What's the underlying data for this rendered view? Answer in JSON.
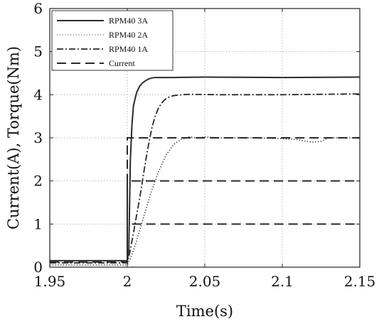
{
  "chart_data": {
    "type": "line",
    "title": "",
    "xlabel": "Time(s)",
    "ylabel": "Current(A), Torque(Nm)",
    "xlim": [
      1.95,
      2.15
    ],
    "ylim": [
      0,
      6
    ],
    "xticks": [
      1.95,
      2.0,
      2.05,
      2.1,
      2.15
    ],
    "xtick_labels": [
      "1.95",
      "2",
      "2.05",
      "2.1",
      "2.15"
    ],
    "yticks": [
      0,
      1,
      2,
      3,
      4,
      5,
      6
    ],
    "ytick_labels": [
      "0",
      "1",
      "2",
      "3",
      "4",
      "5",
      "6"
    ],
    "grid": true,
    "legend_position": "top-left",
    "series": [
      {
        "name": "RPM40 3A",
        "style": "solid",
        "color": "#2a2a2a",
        "x": [
          1.95,
          1.99,
          2.0,
          2.001,
          2.0015,
          2.002,
          2.003,
          2.004,
          2.006,
          2.008,
          2.01,
          2.012,
          2.014,
          2.016,
          2.018,
          2.02,
          2.03,
          2.05,
          2.1,
          2.15
        ],
        "y": [
          0.15,
          0.15,
          0.15,
          0.4,
          1.5,
          2.5,
          3.3,
          3.75,
          4.05,
          4.2,
          4.28,
          4.33,
          4.37,
          4.39,
          4.4,
          4.4,
          4.4,
          4.41,
          4.4,
          4.41
        ]
      },
      {
        "name": "RPM40 2A",
        "style": "dotted",
        "color": "#8a8a8a",
        "x": [
          1.95,
          1.99,
          2.0,
          2.002,
          2.005,
          2.01,
          2.015,
          2.02,
          2.025,
          2.03,
          2.035,
          2.04,
          2.045,
          2.05,
          2.06,
          2.08,
          2.1,
          2.11,
          2.115,
          2.12,
          2.125,
          2.13,
          2.15
        ],
        "y": [
          0.05,
          0.05,
          0.05,
          0.2,
          0.5,
          1.1,
          1.7,
          2.2,
          2.6,
          2.85,
          2.97,
          3.02,
          3.0,
          3.02,
          3.0,
          3.0,
          2.98,
          2.96,
          2.92,
          2.9,
          2.92,
          3.0,
          3.0
        ]
      },
      {
        "name": "RPM40 1A",
        "style": "dashdot",
        "color": "#2a2a2a",
        "x": [
          1.95,
          1.99,
          2.0,
          2.002,
          2.004,
          2.006,
          2.008,
          2.01,
          2.012,
          2.014,
          2.016,
          2.018,
          2.02,
          2.022,
          2.024,
          2.026,
          2.028,
          2.03,
          2.035,
          2.04,
          2.06,
          2.1,
          2.15
        ],
        "y": [
          0.1,
          0.1,
          0.1,
          0.4,
          0.8,
          1.2,
          1.6,
          2.05,
          2.5,
          2.9,
          3.25,
          3.5,
          3.68,
          3.8,
          3.88,
          3.93,
          3.96,
          3.98,
          4.0,
          4.01,
          4.0,
          4.0,
          4.02
        ]
      },
      {
        "name": "Current",
        "style": "dashed",
        "color": "#2a2a2a",
        "segments": [
          {
            "x": [
              1.95,
              2.0,
              2.0,
              2.15
            ],
            "y": [
              0.12,
              0.12,
              3.0,
              3.0
            ]
          },
          {
            "x": [
              2.0,
              2.0,
              2.15
            ],
            "y": [
              0.12,
              2.0,
              2.0
            ]
          },
          {
            "x": [
              2.0,
              2.0,
              2.15
            ],
            "y": [
              0.12,
              1.0,
              1.0
            ]
          }
        ]
      }
    ]
  }
}
